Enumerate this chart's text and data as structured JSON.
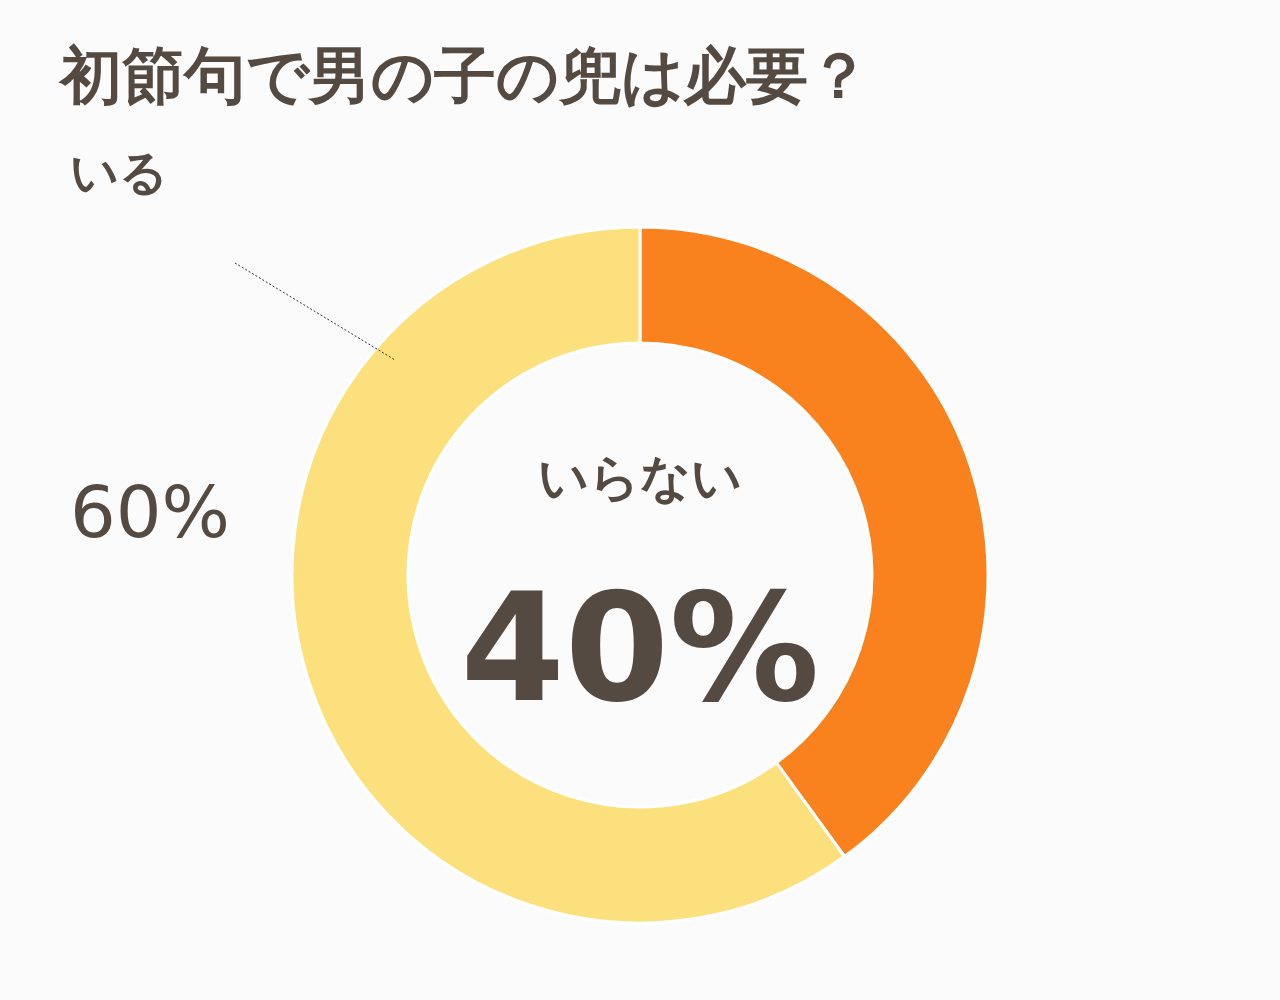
{
  "chart_data": {
    "type": "donut",
    "title": "初節句で男の子の兜は必要？",
    "categories": [
      "いらない",
      "いる"
    ],
    "values": [
      40,
      60
    ],
    "colors": [
      "#f9821e",
      "#fde07e"
    ],
    "value_labels": [
      "40%",
      "60%"
    ]
  }
}
